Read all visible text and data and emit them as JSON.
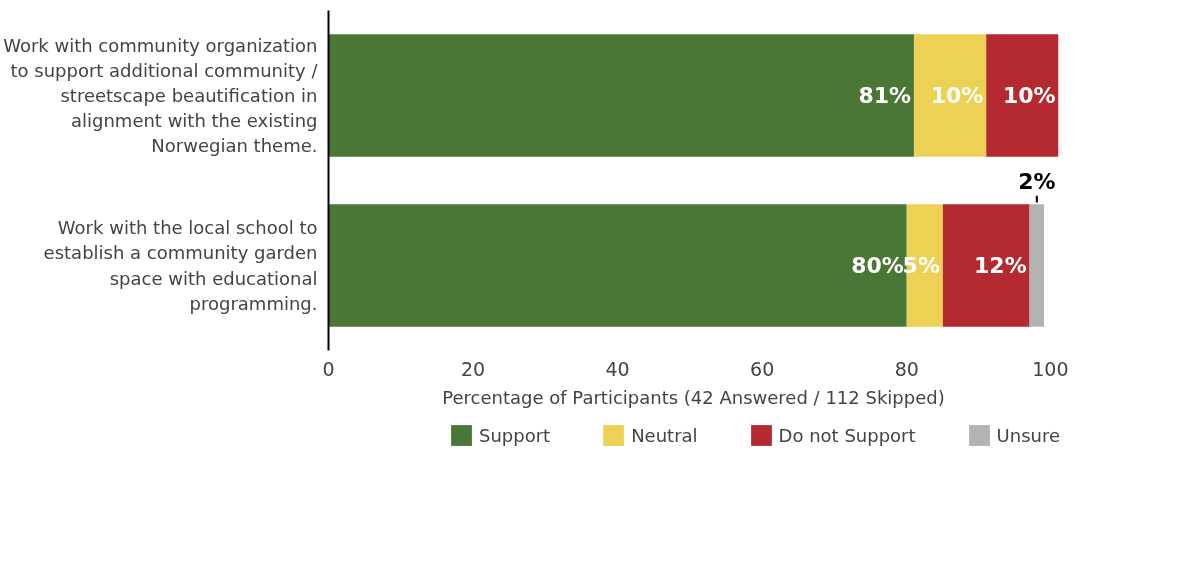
{
  "chart_data": {
    "type": "bar",
    "orientation": "horizontal",
    "stacked": true,
    "categories": [
      "Work with community organization to support additional community / streetscape beautification in alignment with the existing Norwegian theme.",
      "Work with the local school to establish a community garden space with educational programming."
    ],
    "series": [
      {
        "name": "Support",
        "color": "#4a7736",
        "values": [
          81,
          80
        ],
        "value_labels": [
          "81%",
          "80%"
        ]
      },
      {
        "name": "Neutral",
        "color": "#ecd154",
        "values": [
          10,
          5
        ],
        "value_labels": [
          "10%",
          "5%"
        ]
      },
      {
        "name": "Do not Support",
        "color": "#b52a30",
        "values": [
          10,
          12
        ],
        "value_labels": [
          "10%",
          "12%"
        ]
      },
      {
        "name": "Unsure",
        "color": "#b3b3b3",
        "values": [
          null,
          2
        ],
        "value_labels": [
          null,
          "2%"
        ]
      }
    ],
    "xlim": [
      0,
      101
    ],
    "xticks": [
      0,
      20,
      40,
      60,
      80,
      100
    ],
    "xlabel": "Percentage of Participants (42 Answered / 112 Skipped)",
    "legend": "bottom"
  }
}
